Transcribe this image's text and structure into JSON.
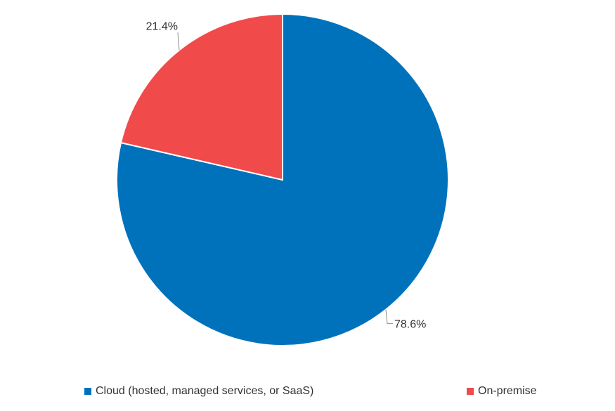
{
  "chart_data": {
    "type": "pie",
    "categories": [
      "Cloud (hosted, managed services, or SaaS)",
      "On-premise"
    ],
    "values": [
      78.6,
      21.4
    ],
    "data_labels": [
      "78.6%",
      "21.4%"
    ],
    "colors": [
      "#0072BB",
      "#F04A4A"
    ],
    "legend_placement": "bottom"
  }
}
